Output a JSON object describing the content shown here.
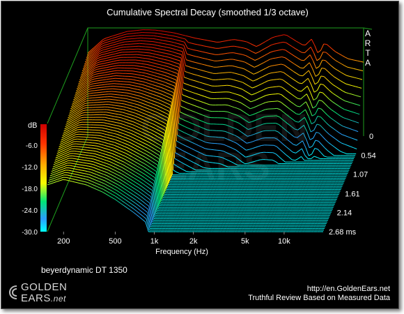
{
  "chart_data": {
    "type": "waterfall",
    "title": "Cumulative Spectral Decay (smoothed 1/3 octave)",
    "xlabel": "Frequency (Hz)",
    "x_ticks": [
      "200",
      "500",
      "1k",
      "2k",
      "5k",
      "10k"
    ],
    "x_tick_values": [
      200,
      500,
      1000,
      2000,
      5000,
      10000
    ],
    "xlim": [
      150,
      20000
    ],
    "x_scale": "log",
    "zlabel": "dB",
    "z_ticks": [
      "-6.0",
      "-12.0",
      "-18.0",
      "-24.0",
      "-30.0"
    ],
    "zlim": [
      -30,
      0
    ],
    "t_ticks": [
      "0",
      "0.54",
      "1.07",
      "1.61",
      "2.14",
      "2.68 ms"
    ],
    "t_tick_values": [
      0,
      0.54,
      1.07,
      1.61,
      2.14,
      2.68
    ],
    "tlim": [
      0,
      2.68
    ],
    "colormap": [
      "#00ffff",
      "#2a9dff",
      "#00e676",
      "#f6ff00",
      "#ffae00",
      "#ff3300",
      "#cc0000"
    ],
    "grid": false,
    "slice_count": 60,
    "initial_response": {
      "freq_hz": [
        150,
        200,
        300,
        400,
        500,
        700,
        1000,
        1500,
        2000,
        2500,
        3000,
        4000,
        5000,
        6000,
        7000,
        8000,
        9000,
        10000,
        12000,
        15000,
        20000
      ],
      "db": [
        -7,
        -3,
        -1,
        -0.5,
        -0.6,
        -1.4,
        -2.8,
        -4.0,
        -3.2,
        -3.8,
        -5.2,
        -2.6,
        -1.8,
        -3.6,
        -5.0,
        -3.0,
        -7.5,
        -4.0,
        -6.5,
        -8.5,
        -9.5
      ]
    },
    "decay_floor_db": -30
  },
  "header": {
    "brand_vertical": "ARTA"
  },
  "caption": {
    "device": "beyerdynamic DT 1350"
  },
  "footer": {
    "logo_top": "GOLDEN",
    "logo_bottom": "EARS",
    "logo_suffix": ".net",
    "url": "http://en.GoldenEars.net",
    "tagline": "Truthful Review Based on Measured Data"
  },
  "watermark": {
    "line1": "GOLDEN",
    "line2": "EARS"
  }
}
